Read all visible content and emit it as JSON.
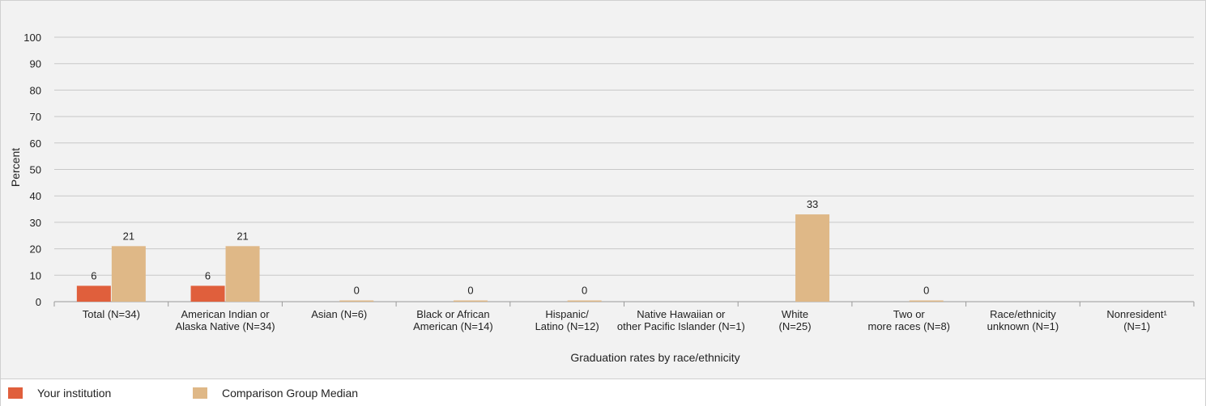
{
  "chart_data": {
    "type": "bar",
    "title": "",
    "xlabel": "Graduation rates by race/ethnicity",
    "ylabel": "Percent",
    "ylim": [
      0,
      100
    ],
    "yticks": [
      0,
      10,
      20,
      30,
      40,
      50,
      60,
      70,
      80,
      90,
      100
    ],
    "grid": true,
    "legend_position": "bottom",
    "categories": [
      [
        "Total (N=34)"
      ],
      [
        "American Indian or",
        "Alaska Native (N=34)"
      ],
      [
        "Asian (N=6)"
      ],
      [
        "Black or African",
        "American (N=14)"
      ],
      [
        "Hispanic/",
        "Latino (N=12)"
      ],
      [
        "Native Hawaiian or",
        "other Pacific Islander (N=1)"
      ],
      [
        "White",
        "(N=25)"
      ],
      [
        "Two or",
        "more races (N=8)"
      ],
      [
        "Race/ethnicity",
        "unknown (N=1)"
      ],
      [
        "Nonresident¹",
        "(N=1)"
      ]
    ],
    "series": [
      {
        "name": "Your institution",
        "color": "#e05f3c",
        "values": [
          6,
          6,
          null,
          null,
          null,
          null,
          null,
          null,
          null,
          null
        ]
      },
      {
        "name": "Comparison Group Median",
        "color": "#dfb887",
        "values": [
          21,
          21,
          0,
          0,
          0,
          null,
          33,
          0,
          null,
          null
        ]
      }
    ]
  }
}
